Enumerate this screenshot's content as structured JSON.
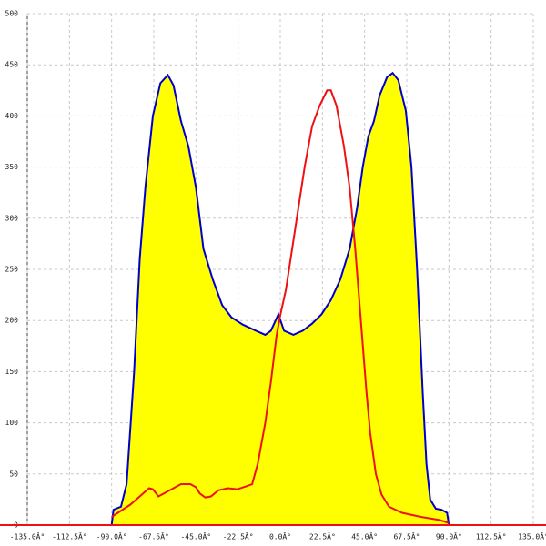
{
  "chart_data": {
    "type": "area",
    "xlim": [
      -135,
      135
    ],
    "xticks": [
      {
        "value": -135,
        "label": "-135.0Â°"
      },
      {
        "value": -112.5,
        "label": "-112.5Â°"
      },
      {
        "value": -90,
        "label": "-90.0Â°"
      },
      {
        "value": -67.5,
        "label": "-67.5Â°"
      },
      {
        "value": -45,
        "label": "-45.0Â°"
      },
      {
        "value": -22.5,
        "label": "-22.5Â°"
      },
      {
        "value": 0,
        "label": "0.0Â°"
      },
      {
        "value": 22.5,
        "label": "22.5Â°"
      },
      {
        "value": 45,
        "label": "45.0Â°"
      },
      {
        "value": 67.5,
        "label": "67.5Â°"
      },
      {
        "value": 90,
        "label": "90.0Â°"
      },
      {
        "value": 112.5,
        "label": "112.5Â°"
      },
      {
        "value": 135,
        "label": "135.0Â°"
      }
    ],
    "ylim": [
      0,
      500
    ],
    "yticks": [
      0,
      50,
      100,
      150,
      200,
      250,
      300,
      350,
      400,
      450,
      500
    ],
    "grid": true,
    "series": [
      {
        "type": "area",
        "color": "#0000cc",
        "fill": "#ffff00",
        "x": [
          -90,
          -89,
          -85,
          -82,
          -78,
          -75,
          -72,
          -68,
          -64,
          -60,
          -57,
          -53,
          -49,
          -45,
          -41,
          -36,
          -31,
          -26,
          -20,
          -13,
          -8,
          -5,
          -1,
          2,
          7,
          12,
          17,
          22,
          27,
          32,
          37,
          41,
          44,
          47,
          50,
          53,
          57,
          60,
          63,
          67,
          70,
          73,
          76,
          78,
          80,
          83,
          86,
          89,
          90
        ],
        "values": [
          0,
          15,
          18,
          40,
          150,
          260,
          330,
          400,
          432,
          440,
          430,
          395,
          370,
          330,
          270,
          240,
          215,
          203,
          196,
          190,
          186,
          190,
          206,
          190,
          186,
          190,
          197,
          206,
          220,
          240,
          270,
          310,
          350,
          380,
          395,
          420,
          438,
          442,
          435,
          405,
          350,
          250,
          130,
          60,
          25,
          16,
          15,
          12,
          0
        ]
      },
      {
        "type": "line",
        "color": "#ee1111",
        "x": [
          -90,
          -85,
          -80,
          -75,
          -70,
          -68,
          -65,
          -62,
          -57,
          -53,
          -48,
          -45,
          -43,
          -40,
          -37,
          -33,
          -28,
          -23,
          -18,
          -15,
          -12,
          -8,
          -5,
          -2,
          0,
          3,
          8,
          13,
          17,
          21,
          25,
          27,
          30,
          34,
          37,
          40,
          43,
          46,
          48,
          51,
          54,
          58,
          65,
          75,
          85,
          90
        ],
        "values": [
          8,
          14,
          20,
          28,
          36,
          35,
          28,
          31,
          36,
          40,
          40,
          37,
          31,
          27,
          28,
          34,
          36,
          35,
          38,
          40,
          60,
          100,
          140,
          185,
          205,
          230,
          290,
          350,
          390,
          410,
          425,
          425,
          410,
          370,
          330,
          270,
          200,
          130,
          90,
          50,
          30,
          18,
          12,
          8,
          5,
          2
        ]
      }
    ]
  }
}
